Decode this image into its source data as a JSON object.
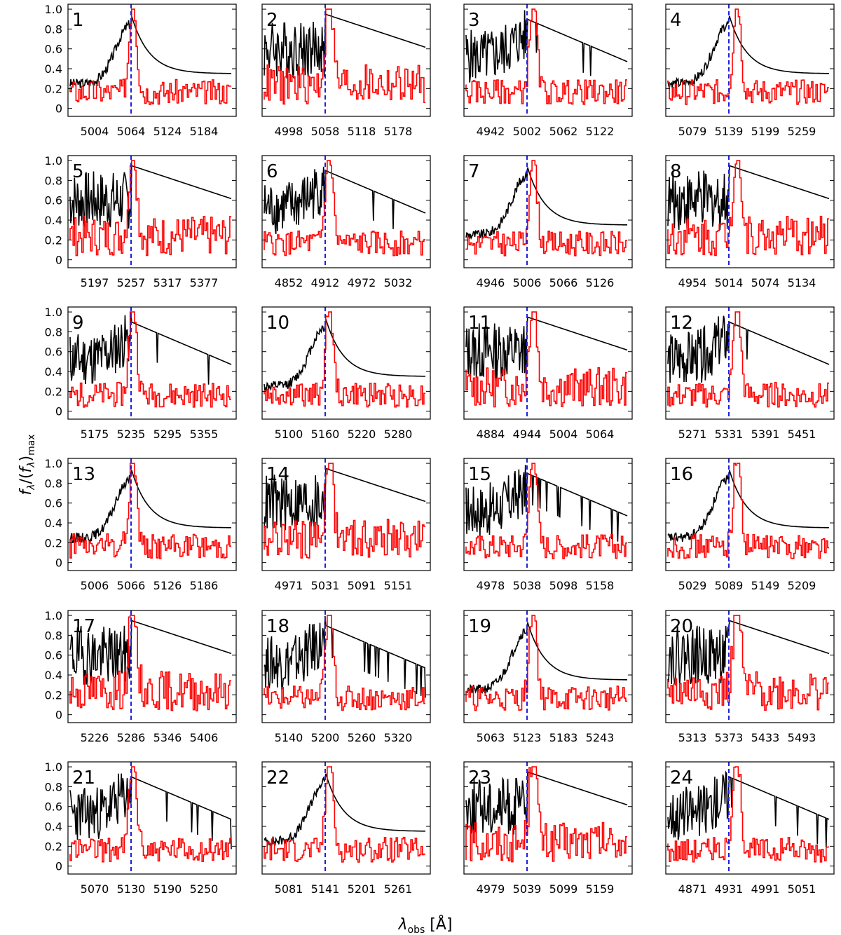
{
  "chart_data": {
    "type": "line",
    "xlabel": "λ_obs [Å]",
    "ylabel": "f_λ/(f_λ)_max",
    "ylim": [
      -0.08,
      1.05
    ],
    "yticks": [
      "1.0",
      "0.8",
      "0.6",
      "0.4",
      "0.2",
      "0"
    ],
    "series_names": [
      "continuum spectrum (black)",
      "line emission (red)",
      "reference wavelength (blue dashed)"
    ],
    "colors": {
      "black": "#000000",
      "red": "#ff0000",
      "blue": "#1f1fdd"
    },
    "panels": [
      {
        "label": "1",
        "xticks": [
          "5004",
          "5064",
          "5124",
          "5184"
        ]
      },
      {
        "label": "2",
        "xticks": [
          "4998",
          "5058",
          "5118",
          "5178"
        ]
      },
      {
        "label": "3",
        "xticks": [
          "4942",
          "5002",
          "5062",
          "5122"
        ]
      },
      {
        "label": "4",
        "xticks": [
          "5079",
          "5139",
          "5199",
          "5259"
        ]
      },
      {
        "label": "5",
        "xticks": [
          "5197",
          "5257",
          "5317",
          "5377"
        ]
      },
      {
        "label": "6",
        "xticks": [
          "4852",
          "4912",
          "4972",
          "5032"
        ]
      },
      {
        "label": "7",
        "xticks": [
          "4946",
          "5006",
          "5066",
          "5126"
        ]
      },
      {
        "label": "8",
        "xticks": [
          "4954",
          "5014",
          "5074",
          "5134"
        ]
      },
      {
        "label": "9",
        "xticks": [
          "5175",
          "5235",
          "5295",
          "5355"
        ]
      },
      {
        "label": "10",
        "xticks": [
          "5100",
          "5160",
          "5220",
          "5280"
        ]
      },
      {
        "label": "11",
        "xticks": [
          "4884",
          "4944",
          "5004",
          "5064"
        ]
      },
      {
        "label": "12",
        "xticks": [
          "5271",
          "5331",
          "5391",
          "5451"
        ]
      },
      {
        "label": "13",
        "xticks": [
          "5006",
          "5066",
          "5126",
          "5186"
        ]
      },
      {
        "label": "14",
        "xticks": [
          "4971",
          "5031",
          "5091",
          "5151"
        ]
      },
      {
        "label": "15",
        "xticks": [
          "4978",
          "5038",
          "5098",
          "5158"
        ]
      },
      {
        "label": "16",
        "xticks": [
          "5029",
          "5089",
          "5149",
          "5209"
        ]
      },
      {
        "label": "17",
        "xticks": [
          "5226",
          "5286",
          "5346",
          "5406"
        ]
      },
      {
        "label": "18",
        "xticks": [
          "5140",
          "5200",
          "5260",
          "5320"
        ]
      },
      {
        "label": "19",
        "xticks": [
          "5063",
          "5123",
          "5183",
          "5243"
        ]
      },
      {
        "label": "20",
        "xticks": [
          "5313",
          "5373",
          "5433",
          "5493"
        ]
      },
      {
        "label": "21",
        "xticks": [
          "5070",
          "5130",
          "5190",
          "5250"
        ]
      },
      {
        "label": "22",
        "xticks": [
          "5081",
          "5141",
          "5201",
          "5261"
        ]
      },
      {
        "label": "23",
        "xticks": [
          "4979",
          "5039",
          "5099",
          "5159"
        ]
      },
      {
        "label": "24",
        "xticks": [
          "4871",
          "4931",
          "4991",
          "5051"
        ]
      }
    ]
  }
}
